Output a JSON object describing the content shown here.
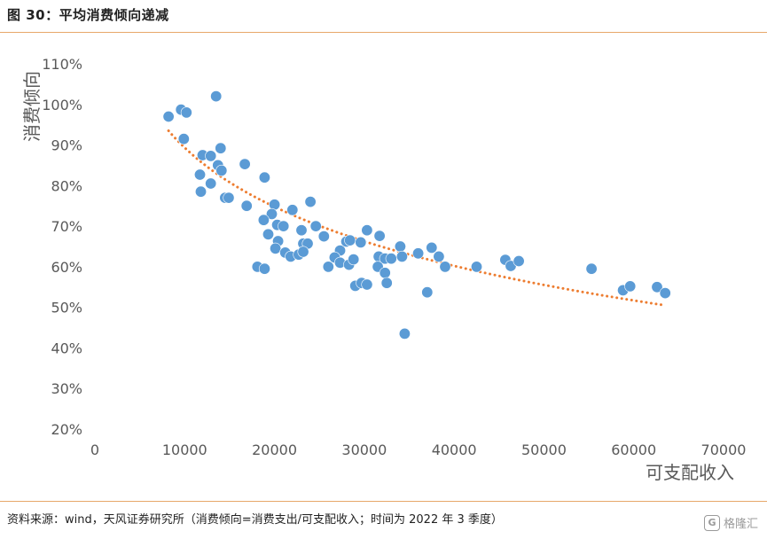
{
  "figure": {
    "title": "图 30：平均消费倾向递减",
    "source": "资料来源：wind，天风证券研究所（消费倾向=消费支出/可支配收入；时间为 2022 年 3 季度）",
    "watermark_text": "格隆汇",
    "watermark_logo": "G"
  },
  "colors": {
    "points": "#5b9bd5",
    "trendline": "#ed7d31",
    "rule": "#e7a86a",
    "axis_text": "#595959"
  },
  "chart_data": {
    "type": "scatter",
    "xlabel": "可支配收入",
    "ylabel": "消费倾向",
    "xlim": [
      0,
      70000
    ],
    "ylim": [
      20,
      110
    ],
    "x_ticks": [
      "0",
      "10000",
      "20000",
      "30000",
      "40000",
      "50000",
      "60000",
      "70000"
    ],
    "y_ticks": [
      "20%",
      "30%",
      "40%",
      "50%",
      "60%",
      "70%",
      "80%",
      "90%",
      "100%",
      "110%"
    ],
    "grid": false,
    "trendline": {
      "type": "logarithmic",
      "style": "dotted",
      "x_start": 8200,
      "x_end": 63500,
      "y_start": 93.5,
      "y_end": 50.5
    },
    "points": [
      [
        8200,
        97
      ],
      [
        9600,
        98.7
      ],
      [
        10200,
        98
      ],
      [
        9900,
        91.5
      ],
      [
        13500,
        102
      ],
      [
        12000,
        87.5
      ],
      [
        12900,
        87.3
      ],
      [
        14000,
        89.2
      ],
      [
        13700,
        85
      ],
      [
        14100,
        83.7
      ],
      [
        11700,
        82.7
      ],
      [
        12900,
        80.5
      ],
      [
        11800,
        78.5
      ],
      [
        14500,
        77
      ],
      [
        14900,
        77
      ],
      [
        16700,
        85.3
      ],
      [
        16900,
        75
      ],
      [
        18900,
        82
      ],
      [
        20000,
        75.3
      ],
      [
        19700,
        73
      ],
      [
        18800,
        71.5
      ],
      [
        22000,
        74
      ],
      [
        24000,
        76
      ],
      [
        20300,
        70.3
      ],
      [
        21000,
        70
      ],
      [
        23000,
        69
      ],
      [
        24600,
        70
      ],
      [
        19300,
        68
      ],
      [
        25500,
        67.5
      ],
      [
        20400,
        66.3
      ],
      [
        23200,
        65.7
      ],
      [
        23700,
        65.7
      ],
      [
        20100,
        64.5
      ],
      [
        21200,
        63.5
      ],
      [
        21800,
        62.5
      ],
      [
        22700,
        63
      ],
      [
        23200,
        63.7
      ],
      [
        18100,
        60
      ],
      [
        18900,
        59.5
      ],
      [
        27300,
        64
      ],
      [
        28000,
        66.2
      ],
      [
        28400,
        66.5
      ],
      [
        30300,
        69
      ],
      [
        31700,
        67.6
      ],
      [
        29600,
        66
      ],
      [
        26700,
        62.3
      ],
      [
        27300,
        61
      ],
      [
        28300,
        60.5
      ],
      [
        28800,
        61.8
      ],
      [
        26000,
        60
      ],
      [
        31600,
        62.5
      ],
      [
        32300,
        62
      ],
      [
        33000,
        62
      ],
      [
        34000,
        65
      ],
      [
        34200,
        62.5
      ],
      [
        36000,
        63.3
      ],
      [
        37500,
        64.7
      ],
      [
        38300,
        62.5
      ],
      [
        31500,
        60
      ],
      [
        32300,
        58.5
      ],
      [
        32500,
        56
      ],
      [
        29000,
        55.3
      ],
      [
        29700,
        56
      ],
      [
        30300,
        55.6
      ],
      [
        37000,
        53.7
      ],
      [
        39000,
        60
      ],
      [
        42500,
        60
      ],
      [
        45700,
        61.7
      ],
      [
        46300,
        60.2
      ],
      [
        47200,
        61.4
      ],
      [
        55300,
        59.5
      ],
      [
        58800,
        54.2
      ],
      [
        59600,
        55.2
      ],
      [
        62600,
        55
      ],
      [
        63500,
        53.5
      ],
      [
        34500,
        43.5
      ]
    ]
  }
}
